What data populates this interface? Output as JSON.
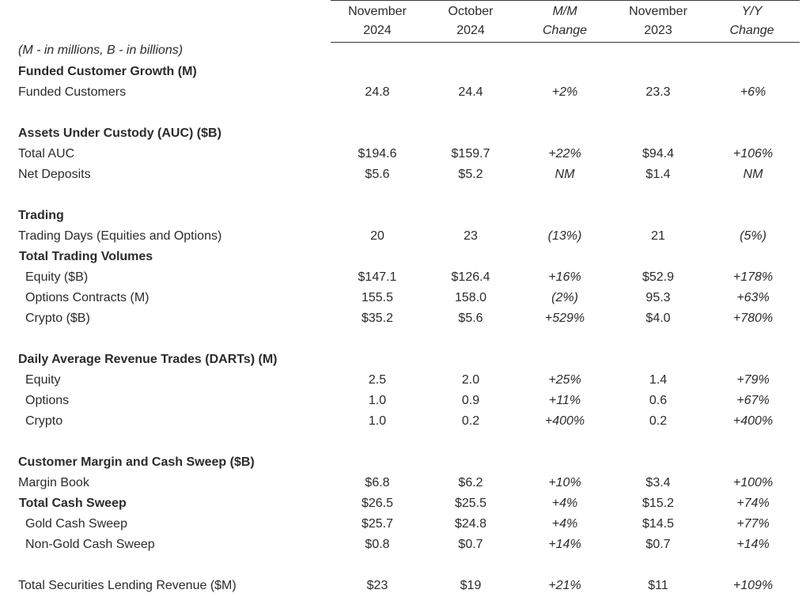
{
  "header": {
    "columns": [
      {
        "line1": "November",
        "line2": "2024"
      },
      {
        "line1": "October",
        "line2": "2024"
      },
      {
        "line1": "M/M",
        "line2": "Change"
      },
      {
        "line1": "November",
        "line2": "2023"
      },
      {
        "line1": "Y/Y",
        "line2": "Change"
      }
    ]
  },
  "note": "(M - in millions, B - in billions)",
  "rows": [
    {
      "label": "Funded Customer Growth (M)"
    },
    {
      "label": "Funded Customers",
      "values": [
        "24.8",
        "24.4",
        "+2%",
        "23.3",
        "+6%"
      ]
    },
    {
      "label": "Assets Under Custody (AUC) ($B)"
    },
    {
      "label": "Total AUC",
      "values": [
        "$194.6",
        "$159.7",
        "+22%",
        "$94.4",
        "+106%"
      ]
    },
    {
      "label": "Net Deposits",
      "values": [
        "$5.6",
        "$5.2",
        "NM",
        "$1.4",
        "NM"
      ]
    },
    {
      "label": "Trading"
    },
    {
      "label": "Trading Days (Equities and Options)",
      "values": [
        "20",
        "23",
        "(13%)",
        "21",
        "(5%)"
      ]
    },
    {
      "label": "Total Trading Volumes"
    },
    {
      "label": "Equity ($B)",
      "values": [
        "$147.1",
        "$126.4",
        "+16%",
        "$52.9",
        "+178%"
      ]
    },
    {
      "label": "Options Contracts (M)",
      "values": [
        "155.5",
        "158.0",
        "(2%)",
        "95.3",
        "+63%"
      ]
    },
    {
      "label": "Crypto ($B)",
      "values": [
        "$35.2",
        "$5.6",
        "+529%",
        "$4.0",
        "+780%"
      ]
    },
    {
      "label": "Daily Average Revenue Trades (DARTs) (M)"
    },
    {
      "label": "Equity",
      "values": [
        "2.5",
        "2.0",
        "+25%",
        "1.4",
        "+79%"
      ]
    },
    {
      "label": "Options",
      "values": [
        "1.0",
        "0.9",
        "+11%",
        "0.6",
        "+67%"
      ]
    },
    {
      "label": "Crypto",
      "values": [
        "1.0",
        "0.2",
        "+400%",
        "0.2",
        "+400%"
      ]
    },
    {
      "label": "Customer Margin and Cash Sweep ($B)"
    },
    {
      "label": "Margin Book",
      "values": [
        "$6.8",
        "$6.2",
        "+10%",
        "$3.4",
        "+100%"
      ]
    },
    {
      "label": "Total Cash Sweep",
      "values": [
        "$26.5",
        "$25.5",
        "+4%",
        "$15.2",
        "+74%"
      ]
    },
    {
      "label": "Gold Cash Sweep",
      "values": [
        "$25.7",
        "$24.8",
        "+4%",
        "$14.5",
        "+77%"
      ]
    },
    {
      "label": "Non-Gold Cash Sweep",
      "values": [
        "$0.8",
        "$0.7",
        "+14%",
        "$0.7",
        "+14%"
      ]
    },
    {
      "label": "Total Securities Lending Revenue ($M)",
      "values": [
        "$23",
        "$19",
        "+21%",
        "$11",
        "+109%"
      ]
    }
  ]
}
